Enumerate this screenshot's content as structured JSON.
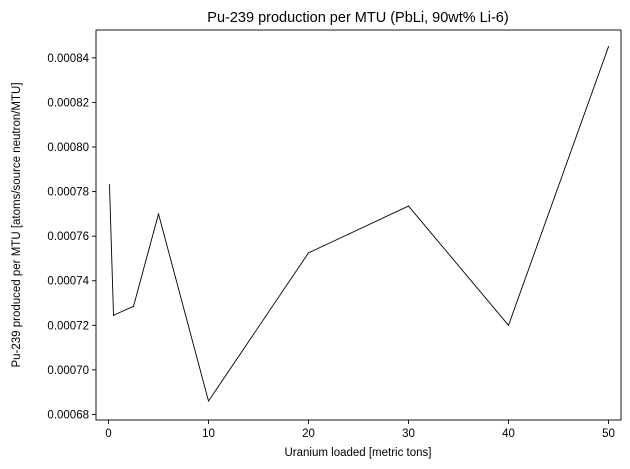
{
  "chart_data": {
    "type": "line",
    "title": "Pu-239 production per MTU (PbLi, 90wt% Li-6)",
    "xlabel": "Uranium loaded [metric tons]",
    "ylabel": "Pu-239 produced per MTU [atoms/source neutron/MTU]",
    "xlim": [
      -1.25,
      51.25
    ],
    "ylim": [
      0.0006775,
      0.0008525
    ],
    "xticks": [
      0,
      10,
      20,
      30,
      40,
      50
    ],
    "xtick_labels": [
      "0",
      "10",
      "20",
      "30",
      "40",
      "50"
    ],
    "yticks": [
      0.00068,
      0.0007,
      0.00072,
      0.00074,
      0.00076,
      0.00078,
      0.0008,
      0.00082,
      0.00084
    ],
    "ytick_labels": [
      "0.00068",
      "0.00070",
      "0.00072",
      "0.00074",
      "0.00076",
      "0.00078",
      "0.00080",
      "0.00082",
      "0.00084"
    ],
    "grid": false,
    "series": [
      {
        "x": [
          0.1,
          0.5,
          2.5,
          5,
          10,
          20,
          30,
          40,
          50
        ],
        "y": [
          0.000783,
          0.0007245,
          0.0007285,
          0.00077,
          0.000686,
          0.0007525,
          0.0007735,
          0.00072,
          0.000845
        ],
        "color": "#000000"
      }
    ]
  }
}
